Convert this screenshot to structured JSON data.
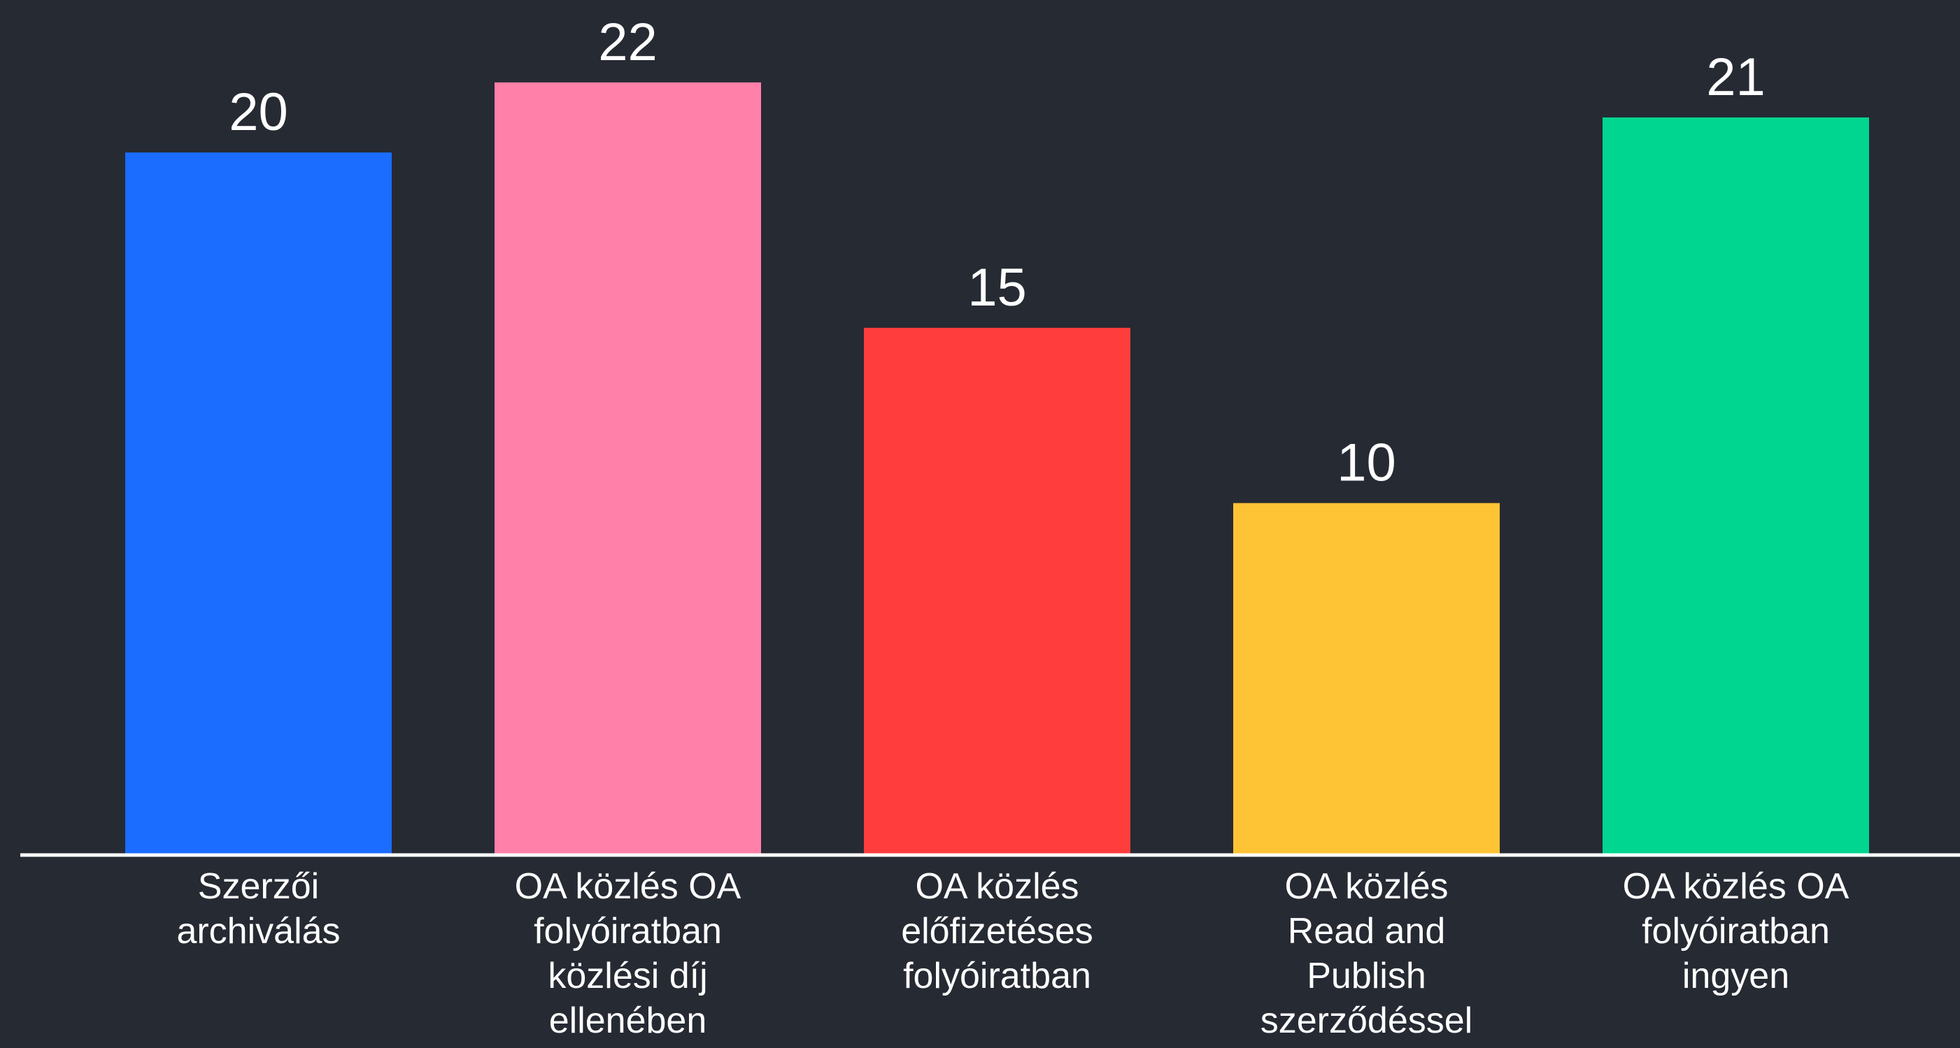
{
  "chart_data": {
    "type": "bar",
    "categories": [
      "Szerzői archiválás",
      "OA közlés OA folyóiratban közlési díj ellenében",
      "OA közlés előfizetéses folyóiratban",
      "OA közlés Read and Publish szerződéssel",
      "OA közlés OA folyóiratban ingyen"
    ],
    "values": [
      20,
      22,
      15,
      10,
      21
    ],
    "colors": [
      "#1a6dff",
      "#ff80a8",
      "#ff3d3d",
      "#ffc436",
      "#00d68f"
    ],
    "ylim": [
      0,
      24.35
    ]
  }
}
